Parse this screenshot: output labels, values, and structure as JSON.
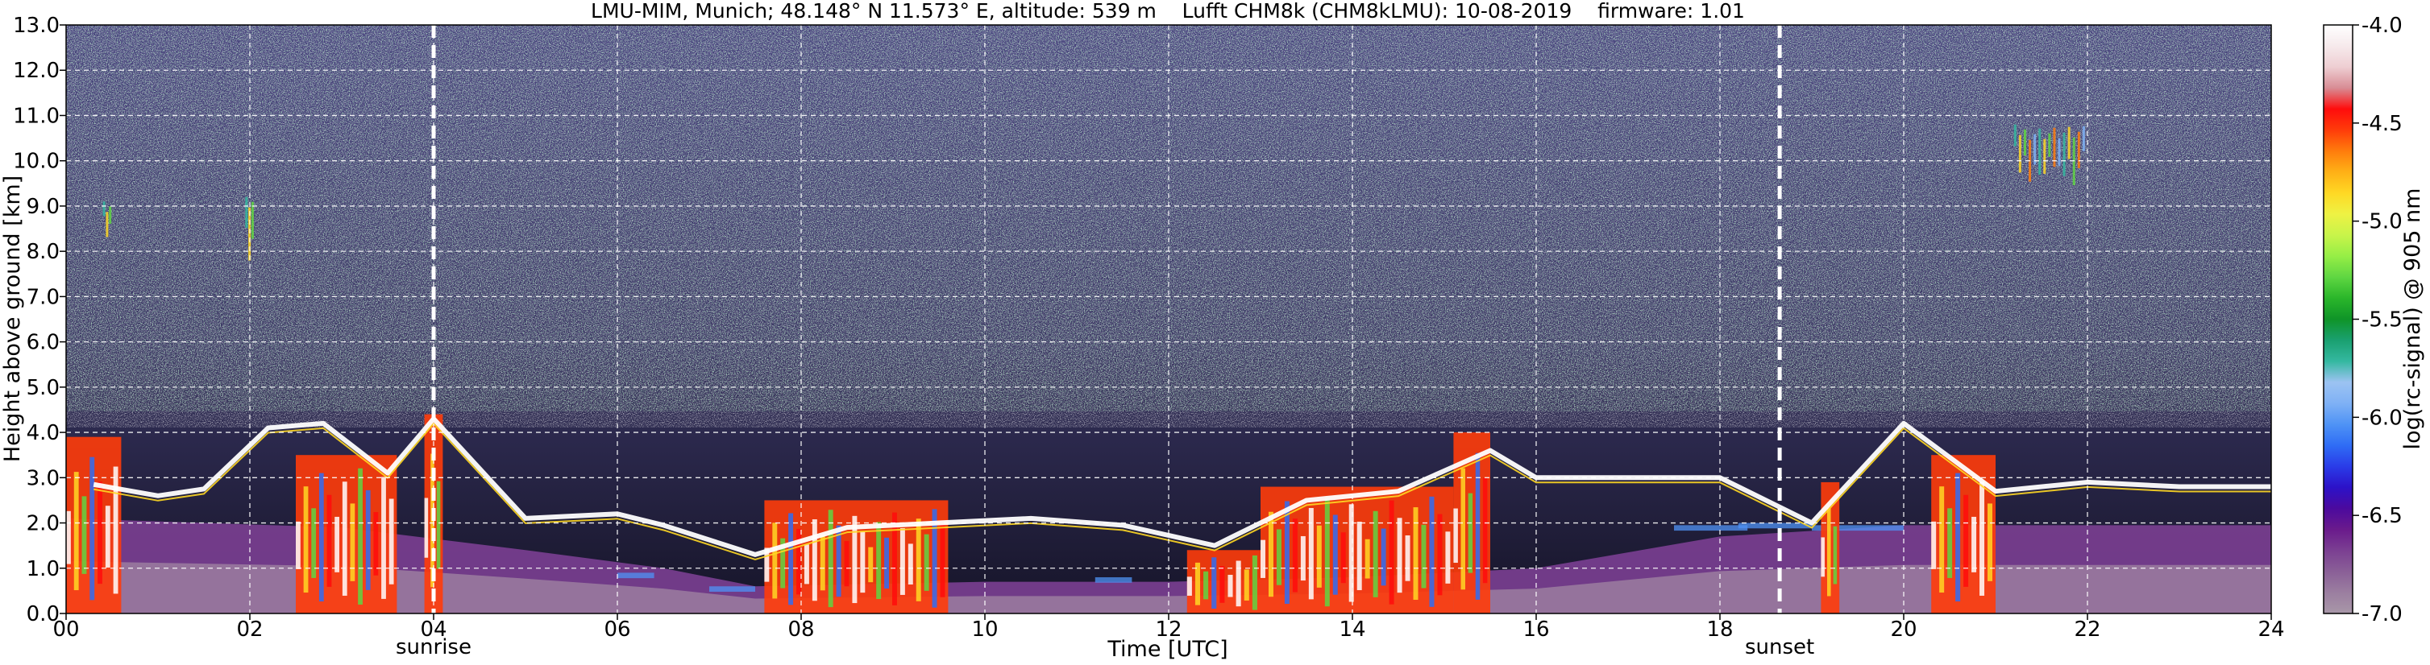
{
  "chart_data": {
    "type": "heatmap",
    "title": "LMU-MIM, Munich; 48.148° N 11.573° E, altitude: 539 m    Lufft CHM8k (CHM8kLMU): 10-08-2019    firmware: 1.01",
    "xlabel": "Time [UTC]",
    "ylabel": "Height above ground [km]",
    "xlim": [
      0,
      24
    ],
    "ylim": [
      0,
      13
    ],
    "x_ticks": [
      "00",
      "02",
      "04",
      "06",
      "08",
      "10",
      "12",
      "14",
      "16",
      "18",
      "20",
      "22",
      "24"
    ],
    "y_ticks": [
      "0.0",
      "1.0",
      "2.0",
      "3.0",
      "4.0",
      "5.0",
      "6.0",
      "7.0",
      "8.0",
      "9.0",
      "10.0",
      "11.0",
      "12.0",
      "13.0"
    ],
    "grid": true,
    "colorbar": {
      "label": "log(rc-signal) @ 905 nm",
      "range": [
        -7.0,
        -4.0
      ],
      "ticks": [
        "-4.0",
        "-4.5",
        "-5.0",
        "-5.5",
        "-6.0",
        "-6.5",
        "-7.0"
      ],
      "colors": [
        "#a897a8",
        "#9b7ea0",
        "#8a5f97",
        "#7b3f92",
        "#6a1a8c",
        "#4b0a9e",
        "#2c12c8",
        "#2a3ce8",
        "#2f6df5",
        "#4f93f5",
        "#7fb1f5",
        "#9cc3f2",
        "#34b8a0",
        "#1aa070",
        "#0f9428",
        "#2ab62a",
        "#5fd642",
        "#96ee46",
        "#c8f44a",
        "#eef244",
        "#ffd824",
        "#ffb016",
        "#ff7c0c",
        "#ff3c0a",
        "#ff0c0c",
        "#d88c94",
        "#eeced2",
        "#f6eaec",
        "#ffffff"
      ]
    },
    "events": [
      {
        "label": "sunrise",
        "time": 4.0
      },
      {
        "label": "sunset",
        "time": 18.65
      }
    ],
    "features": {
      "boundary_layer_top_km": [
        {
          "time": 0.3,
          "top": 2.85
        },
        {
          "time": 1.0,
          "top": 2.6
        },
        {
          "time": 1.5,
          "top": 2.75
        },
        {
          "time": 2.2,
          "top": 4.1
        },
        {
          "time": 2.8,
          "top": 4.2
        },
        {
          "time": 3.5,
          "top": 3.1
        },
        {
          "time": 4.0,
          "top": 4.3
        },
        {
          "time": 5.0,
          "top": 2.1
        },
        {
          "time": 6.0,
          "top": 2.2
        },
        {
          "time": 6.5,
          "top": 1.95
        },
        {
          "time": 7.5,
          "top": 1.3
        },
        {
          "time": 8.5,
          "top": 1.9
        },
        {
          "time": 9.5,
          "top": 2.0
        },
        {
          "time": 10.5,
          "top": 2.1
        },
        {
          "time": 11.5,
          "top": 1.95
        },
        {
          "time": 12.5,
          "top": 1.5
        },
        {
          "time": 13.5,
          "top": 2.5
        },
        {
          "time": 14.5,
          "top": 2.7
        },
        {
          "time": 15.5,
          "top": 3.6
        },
        {
          "time": 16.0,
          "top": 3.0
        },
        {
          "time": 17.0,
          "top": 3.0
        },
        {
          "time": 18.0,
          "top": 3.0
        },
        {
          "time": 19.0,
          "top": 2.0
        },
        {
          "time": 20.0,
          "top": 4.2
        },
        {
          "time": 21.0,
          "top": 2.7
        },
        {
          "time": 22.0,
          "top": 2.9
        },
        {
          "time": 23.0,
          "top": 2.8
        },
        {
          "time": 24.0,
          "top": 2.8
        }
      ],
      "aerosol_layer_top_km": 1.95,
      "cirrus": [
        {
          "time_start": 0.4,
          "time_end": 0.5,
          "height_bottom": 8.3,
          "height_top": 9.1
        },
        {
          "time_start": 1.95,
          "time_end": 2.05,
          "height_bottom": 7.5,
          "height_top": 9.2
        },
        {
          "time_start": 21.2,
          "time_end": 22.0,
          "height_bottom": 9.6,
          "height_top": 10.8
        }
      ],
      "strong_cloud_periods": [
        {
          "time_start": 0.0,
          "time_end": 0.6,
          "top": 3.9
        },
        {
          "time_start": 2.5,
          "time_end": 3.6,
          "top": 3.5
        },
        {
          "time_start": 3.9,
          "time_end": 4.1,
          "top": 4.4
        },
        {
          "time_start": 7.6,
          "time_end": 9.6,
          "top": 2.5
        },
        {
          "time_start": 12.2,
          "time_end": 13.0,
          "top": 1.4
        },
        {
          "time_start": 13.0,
          "time_end": 15.1,
          "top": 2.8
        },
        {
          "time_start": 15.1,
          "time_end": 15.5,
          "top": 4.0
        },
        {
          "time_start": 19.1,
          "time_end": 19.3,
          "top": 2.9
        },
        {
          "time_start": 20.3,
          "time_end": 21.0,
          "top": 3.5
        }
      ]
    }
  }
}
